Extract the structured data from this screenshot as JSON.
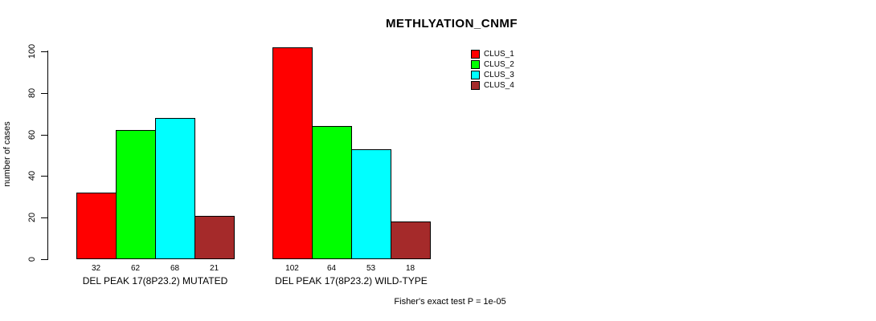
{
  "chart_data": {
    "type": "bar",
    "title": "METHLYATION_CNMF",
    "ylabel": "number of cases",
    "ylim": [
      0,
      105
    ],
    "yticks": [
      0,
      20,
      40,
      60,
      80,
      100
    ],
    "grid": false,
    "categories": [
      "DEL PEAK 17(8P23.2) MUTATED",
      "DEL PEAK 17(8P23.2) WILD-TYPE"
    ],
    "series": [
      {
        "name": "CLUS_1",
        "color": "#FF0000",
        "values": [
          32,
          102
        ]
      },
      {
        "name": "CLUS_2",
        "color": "#00FF00",
        "values": [
          62,
          64
        ]
      },
      {
        "name": "CLUS_3",
        "color": "#00FFFF",
        "values": [
          68,
          53
        ]
      },
      {
        "name": "CLUS_4",
        "color": "#A52A2A",
        "values": [
          21,
          18
        ]
      }
    ],
    "bar_value_labels_shown": true,
    "legend_position": "top-right",
    "annotation": "Fisher's exact test P = 1e-05",
    "axis_color": "#000000",
    "background_color": "#FFFFFF"
  }
}
